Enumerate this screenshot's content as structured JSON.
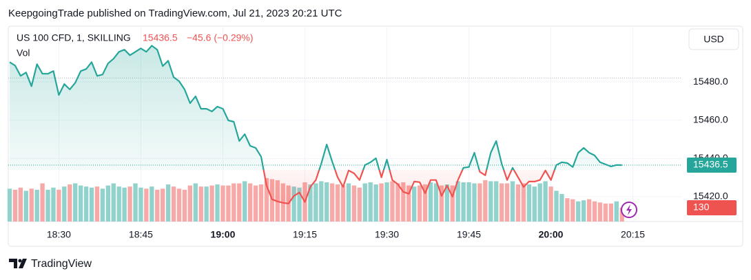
{
  "chart_data": {
    "type": "baseline",
    "header": "KeepgoingTrade published on TradingView.com, Jul 21, 2023 20:21 UTC",
    "last_price_label": "15436.5",
    "change_label": "−45.6 (−0.29%)",
    "currency": "USD",
    "brand": "TradingView",
    "x": [
      "18:21",
      "18:22",
      "18:23",
      "18:24",
      "18:25",
      "18:26",
      "18:27",
      "18:28",
      "18:29",
      "18:30",
      "18:31",
      "18:32",
      "18:33",
      "18:34",
      "18:35",
      "18:36",
      "18:37",
      "18:38",
      "18:39",
      "18:40",
      "18:41",
      "18:42",
      "18:43",
      "18:44",
      "18:45",
      "18:46",
      "18:47",
      "18:48",
      "18:49",
      "18:50",
      "18:51",
      "18:52",
      "18:53",
      "18:54",
      "18:55",
      "18:56",
      "18:57",
      "18:58",
      "18:59",
      "19:00",
      "19:01",
      "19:02",
      "19:03",
      "19:04",
      "19:05",
      "19:06",
      "19:07",
      "19:08",
      "19:09",
      "19:10",
      "19:11",
      "19:12",
      "19:13",
      "19:14",
      "19:15",
      "19:16",
      "19:17",
      "19:18",
      "19:19",
      "19:20",
      "19:21",
      "19:22",
      "19:23",
      "19:24",
      "19:25",
      "19:26",
      "19:27",
      "19:28",
      "19:29",
      "19:30",
      "19:31",
      "19:32",
      "19:33",
      "19:34",
      "19:35",
      "19:36",
      "19:37",
      "19:38",
      "19:39",
      "19:40",
      "19:41",
      "19:42",
      "19:43",
      "19:44",
      "19:45",
      "19:46",
      "19:47",
      "19:48",
      "19:49",
      "19:50",
      "19:51",
      "19:52",
      "19:53",
      "19:54",
      "19:55",
      "19:56",
      "19:57",
      "19:58",
      "19:59",
      "20:00",
      "20:01",
      "20:02",
      "20:03",
      "20:04",
      "20:05",
      "20:06",
      "20:07",
      "20:08",
      "20:09",
      "20:10",
      "20:11",
      "20:12",
      "20:13"
    ],
    "series": [
      {
        "name": "US 100 CFD, 1, SKILLING",
        "color": "#26a69a",
        "down_color": "#ef5350",
        "values": [
          15490.4,
          15488.6,
          15483.2,
          15485.0,
          15477.8,
          15489.3,
          15484.3,
          15484.3,
          15485.7,
          15473.2,
          15478.9,
          15476.1,
          15479.6,
          15485.7,
          15486.8,
          15490.4,
          15483.2,
          15483.9,
          15489.7,
          15492.2,
          15495.8,
          15496.9,
          15494.0,
          15495.8,
          15497.6,
          15495.8,
          15499.0,
          15496.9,
          15488.3,
          15491.1,
          15482.5,
          15480.4,
          15476.1,
          15468.9,
          15472.5,
          15466.0,
          15466.0,
          15464.6,
          15467.1,
          15466.0,
          15459.9,
          15459.2,
          15449.1,
          15452.7,
          15446.6,
          15445.5,
          15440.9,
          15425.8,
          15418.6,
          15417.5,
          15416.8,
          15416.4,
          15420.4,
          15422.2,
          15417.2,
          15425.1,
          15428.7,
          15437.3,
          15447.3,
          15438.3,
          15430.1,
          15425.1,
          15433.7,
          15432.2,
          15428.7,
          15436.6,
          15438.0,
          15440.1,
          15430.1,
          15439.4,
          15428.7,
          15426.5,
          15422.5,
          15421.5,
          15427.9,
          15427.6,
          15421.8,
          15428.7,
          15428.7,
          15420.4,
          15425.8,
          15420.0,
          15428.7,
          15435.1,
          15435.5,
          15443.0,
          15433.0,
          15431.2,
          15443.0,
          15449.1,
          15437.3,
          15428.7,
          15435.1,
          15430.1,
          15425.1,
          15427.9,
          15427.9,
          15428.7,
          15433.7,
          15428.7,
          15436.6,
          15438.0,
          15437.6,
          15435.5,
          15443.0,
          15445.5,
          15443.0,
          15441.6,
          15438.0,
          15436.9,
          15435.8,
          15436.6,
          15436.5
        ]
      },
      {
        "name": "Vol",
        "up_color": "#92d2cc",
        "down_color": "#f7a9a7",
        "values": [
          310,
          300,
          320,
          290,
          310,
          300,
          360,
          300,
          320,
          300,
          330,
          350,
          360,
          340,
          330,
          320,
          330,
          310,
          340,
          360,
          330,
          320,
          330,
          360,
          320,
          310,
          330,
          300,
          310,
          350,
          330,
          310,
          300,
          340,
          360,
          330,
          330,
          340,
          350,
          340,
          340,
          360,
          360,
          380,
          360,
          340,
          350,
          410,
          400,
          390,
          360,
          340,
          330,
          320,
          370,
          350,
          360,
          380,
          370,
          360,
          350,
          340,
          360,
          340,
          320,
          360,
          370,
          350,
          360,
          370,
          380,
          360,
          370,
          340,
          330,
          340,
          350,
          370,
          360,
          340,
          350,
          340,
          380,
          370,
          370,
          360,
          360,
          390,
          380,
          380,
          360,
          360,
          380,
          350,
          360,
          350,
          330,
          360,
          380,
          330,
          290,
          260,
          220,
          210,
          190,
          200,
          210,
          190,
          180,
          170,
          170,
          190,
          130
        ]
      }
    ],
    "baseline": 15434,
    "previous_close": 15482.1,
    "xlim": [
      "18:21",
      "20:24"
    ],
    "xticks": [
      "18:30",
      "18:45",
      "19:00",
      "19:15",
      "19:30",
      "19:45",
      "20:00",
      "20:15"
    ],
    "ylim": [
      15407,
      15508.5
    ],
    "yticks": [
      {
        "value": 15420,
        "label": "15420.0"
      },
      {
        "value": 15440,
        "label": "15440.0"
      },
      {
        "value": 15460,
        "label": "15460.0"
      },
      {
        "value": 15480,
        "label": "15480.0"
      }
    ],
    "volume_lim": [
      0,
      1830
    ],
    "grid": true
  }
}
